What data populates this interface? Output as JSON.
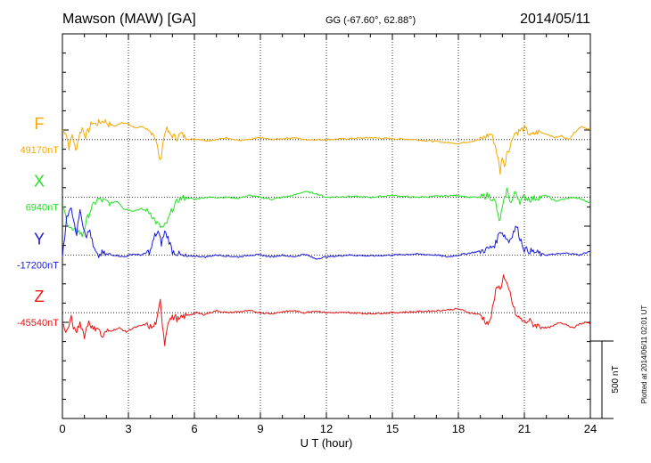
{
  "header": {
    "station": "Mawson (MAW)  [GA]",
    "coords": "GG (-67.60°,  62.88°)",
    "date": "2014/05/11"
  },
  "side_note": "Plotted at 2014/06/11 02:01  UT",
  "scale_label": "500 nT",
  "chart_data": {
    "type": "line",
    "title": "Mawson (MAW)  [GA]",
    "xlabel": "U T (hour)",
    "ylabel": "",
    "xlim": [
      0,
      24
    ],
    "xticks": [
      0,
      3,
      6,
      9,
      12,
      15,
      18,
      21,
      24
    ],
    "xtick_labels": [
      "0",
      "3",
      "6",
      "9",
      "12",
      "15",
      "18",
      "21",
      "24"
    ],
    "ylim_nT": [
      -1000,
      1000
    ],
    "grid": "dotted",
    "scale_bar_nT": 500,
    "series": [
      {
        "name": "F",
        "baseline_label": "49170nT",
        "color": "#f5a800",
        "offset_nT": 450,
        "x": [
          0,
          0.15,
          0.3,
          0.45,
          0.6,
          0.75,
          0.9,
          1.05,
          1.2,
          1.35,
          1.5,
          1.7,
          1.9,
          2.1,
          2.4,
          2.7,
          3.0,
          3.3,
          3.6,
          3.9,
          4.1,
          4.25,
          4.35,
          4.45,
          4.55,
          4.7,
          4.85,
          5.0,
          5.2,
          5.4,
          5.6,
          5.8,
          6.0,
          6.3,
          6.6,
          7.0,
          7.5,
          8.0,
          8.5,
          9.0,
          9.5,
          10.0,
          10.5,
          11.0,
          12.0,
          13.0,
          14.0,
          15.0,
          16.0,
          17.0,
          18.0,
          18.5,
          19.0,
          19.3,
          19.5,
          19.7,
          19.8,
          19.9,
          20.0,
          20.1,
          20.2,
          20.35,
          20.5,
          20.7,
          21.0,
          21.3,
          21.6,
          22.0,
          22.4,
          22.7,
          23.0,
          23.3,
          23.6,
          24.0
        ],
        "y": [
          50,
          40,
          -40,
          30,
          -60,
          20,
          60,
          20,
          50,
          90,
          80,
          90,
          100,
          80,
          70,
          90,
          80,
          60,
          70,
          40,
          40,
          0,
          -60,
          -120,
          -30,
          60,
          30,
          20,
          10,
          30,
          10,
          0,
          5,
          0,
          -5,
          0,
          10,
          -5,
          0,
          10,
          0,
          5,
          10,
          0,
          0,
          5,
          10,
          5,
          0,
          -10,
          -20,
          -10,
          0,
          20,
          30,
          -40,
          -100,
          -170,
          -80,
          -150,
          -60,
          -40,
          30,
          40,
          60,
          20,
          40,
          30,
          10,
          20,
          0,
          40,
          70,
          50
        ]
      },
      {
        "name": "X",
        "baseline_label": "6940nT",
        "color": "#22e022",
        "offset_nT": 150,
        "x": [
          0,
          0.15,
          0.3,
          0.5,
          0.7,
          0.9,
          1.1,
          1.3,
          1.6,
          1.9,
          2.2,
          2.5,
          2.8,
          3.2,
          3.6,
          4.0,
          4.2,
          4.4,
          4.6,
          4.8,
          5.0,
          5.3,
          5.6,
          6.0,
          6.5,
          7.0,
          7.5,
          8.0,
          8.5,
          9.0,
          9.5,
          10.0,
          10.5,
          11.0,
          11.5,
          12.0,
          13.0,
          14.0,
          15.0,
          16.0,
          17.0,
          18.0,
          18.5,
          19.0,
          19.3,
          19.5,
          19.7,
          19.85,
          20.0,
          20.2,
          20.4,
          20.6,
          20.8,
          21.0,
          21.3,
          21.6,
          22.0,
          22.4,
          22.8,
          23.2,
          23.6,
          24.0
        ],
        "y": [
          -40,
          -100,
          -150,
          -180,
          -170,
          -200,
          -120,
          -60,
          -10,
          -20,
          -30,
          -20,
          -60,
          -70,
          -60,
          -80,
          -120,
          -150,
          -160,
          -120,
          -60,
          -10,
          0,
          -10,
          0,
          0,
          0,
          -5,
          10,
          0,
          -10,
          0,
          10,
          30,
          20,
          0,
          5,
          0,
          10,
          0,
          5,
          10,
          0,
          0,
          10,
          0,
          -30,
          -130,
          -60,
          40,
          -30,
          30,
          -20,
          0,
          -10,
          0,
          10,
          -20,
          -10,
          0,
          -10,
          -30
        ]
      },
      {
        "name": "Y",
        "baseline_label": "-17200nT",
        "color": "#1a1adc",
        "offset_nT": -150,
        "x": [
          0,
          0.1,
          0.2,
          0.35,
          0.5,
          0.65,
          0.8,
          0.95,
          1.1,
          1.25,
          1.4,
          1.6,
          1.8,
          2.0,
          2.4,
          2.8,
          3.2,
          3.6,
          4.0,
          4.2,
          4.35,
          4.5,
          4.65,
          4.8,
          5.0,
          5.2,
          5.5,
          6.0,
          6.5,
          7.0,
          7.5,
          8.0,
          8.5,
          9.0,
          9.5,
          10.0,
          10.5,
          11.0,
          11.5,
          12.0,
          12.5,
          13.0,
          14.0,
          15.0,
          16.0,
          17.0,
          17.5,
          18.0,
          18.5,
          19.0,
          19.3,
          19.5,
          19.7,
          19.9,
          20.1,
          20.3,
          20.5,
          20.65,
          20.8,
          21.0,
          21.3,
          21.6,
          22.0,
          22.5,
          23.0,
          23.5,
          24.0
        ],
        "y": [
          0,
          80,
          200,
          250,
          200,
          100,
          250,
          150,
          100,
          130,
          40,
          -10,
          10,
          0,
          0,
          -10,
          5,
          0,
          20,
          100,
          120,
          60,
          120,
          90,
          20,
          10,
          -10,
          -5,
          -10,
          0,
          -5,
          -10,
          0,
          0,
          -10,
          0,
          -10,
          5,
          -20,
          -10,
          -5,
          0,
          -5,
          0,
          5,
          0,
          -10,
          0,
          10,
          20,
          30,
          40,
          60,
          130,
          100,
          70,
          120,
          150,
          90,
          30,
          20,
          10,
          0,
          5,
          10,
          0,
          20
        ]
      },
      {
        "name": "Z",
        "baseline_label": "-45540nT",
        "color": "#ee1111",
        "offset_nT": -450,
        "x": [
          0,
          0.2,
          0.4,
          0.6,
          0.8,
          1.0,
          1.2,
          1.4,
          1.6,
          1.8,
          2.0,
          2.3,
          2.6,
          2.9,
          3.2,
          3.5,
          3.8,
          4.1,
          4.3,
          4.45,
          4.55,
          4.65,
          4.8,
          4.95,
          5.1,
          5.3,
          5.5,
          5.8,
          6.1,
          6.4,
          6.7,
          7.0,
          7.5,
          8.0,
          8.5,
          9.0,
          9.5,
          10.0,
          10.5,
          11.0,
          11.5,
          12.0,
          13.0,
          14.0,
          15.0,
          16.0,
          17.0,
          18.0,
          18.5,
          19.0,
          19.2,
          19.4,
          19.6,
          19.75,
          19.9,
          20.05,
          20.2,
          20.35,
          20.5,
          20.65,
          20.8,
          21.0,
          21.2,
          21.4,
          21.7,
          22.0,
          22.3,
          22.6,
          22.9,
          23.2,
          23.5,
          23.8,
          24.0
        ],
        "y": [
          -60,
          -100,
          -30,
          -110,
          -50,
          -120,
          -40,
          -90,
          -70,
          -130,
          -100,
          -90,
          -80,
          -100,
          -80,
          -70,
          -60,
          -80,
          -40,
          60,
          -60,
          -160,
          -40,
          -30,
          -20,
          -40,
          -20,
          -10,
          0,
          -10,
          0,
          10,
          0,
          5,
          10,
          0,
          -5,
          5,
          10,
          0,
          10,
          0,
          0,
          -5,
          0,
          5,
          10,
          20,
          0,
          -10,
          -40,
          -60,
          40,
          150,
          120,
          190,
          140,
          100,
          30,
          -20,
          -30,
          -50,
          -40,
          -60,
          -70,
          -80,
          -70,
          -50,
          -60,
          -80,
          -60,
          -50,
          -60
        ]
      }
    ]
  }
}
